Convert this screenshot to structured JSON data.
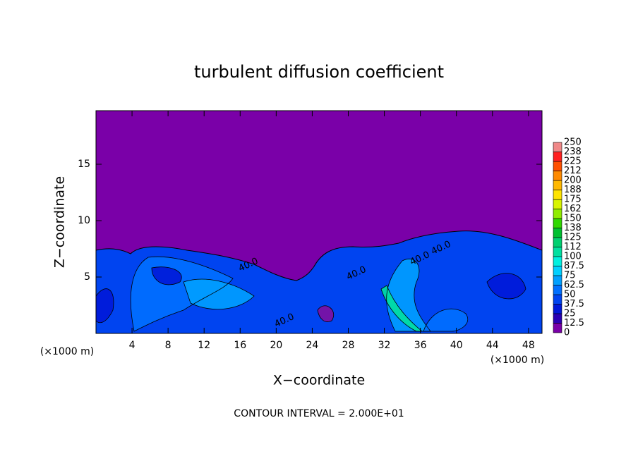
{
  "chart_data": {
    "type": "contour",
    "title": "turbulent diffusion coefficient",
    "xlabel": "X−coordinate",
    "ylabel": "Z−coordinate",
    "x_unit": "(×1000 m)",
    "footer": "CONTOUR INTERVAL = 2.000E+01",
    "xlim": [
      0,
      49.5
    ],
    "ylim": [
      0,
      19.75
    ],
    "xticks": [
      4,
      8,
      12,
      16,
      20,
      24,
      28,
      32,
      36,
      40,
      44,
      48
    ],
    "yticks": [
      5,
      10,
      15
    ],
    "levels": [
      0,
      12.5,
      25,
      37.5,
      50,
      62.5,
      75,
      87.5,
      100,
      112,
      125,
      138,
      150,
      162,
      175,
      188,
      200,
      212,
      225,
      238,
      250
    ],
    "colors": [
      "#7a00a8",
      "#2a00b4",
      "#0018d8",
      "#0044f0",
      "#0070ff",
      "#00a0ff",
      "#00d0ff",
      "#00f0e0",
      "#00e0a0",
      "#00d070",
      "#00c030",
      "#30d800",
      "#90ec00",
      "#d8f400",
      "#ffe400",
      "#ffb800",
      "#ff8a00",
      "#ff5000",
      "#ff2020",
      "#f08888"
    ],
    "contour_labels": [
      "40.0",
      "40.0",
      "40.0",
      "40.0",
      "40.0"
    ]
  }
}
